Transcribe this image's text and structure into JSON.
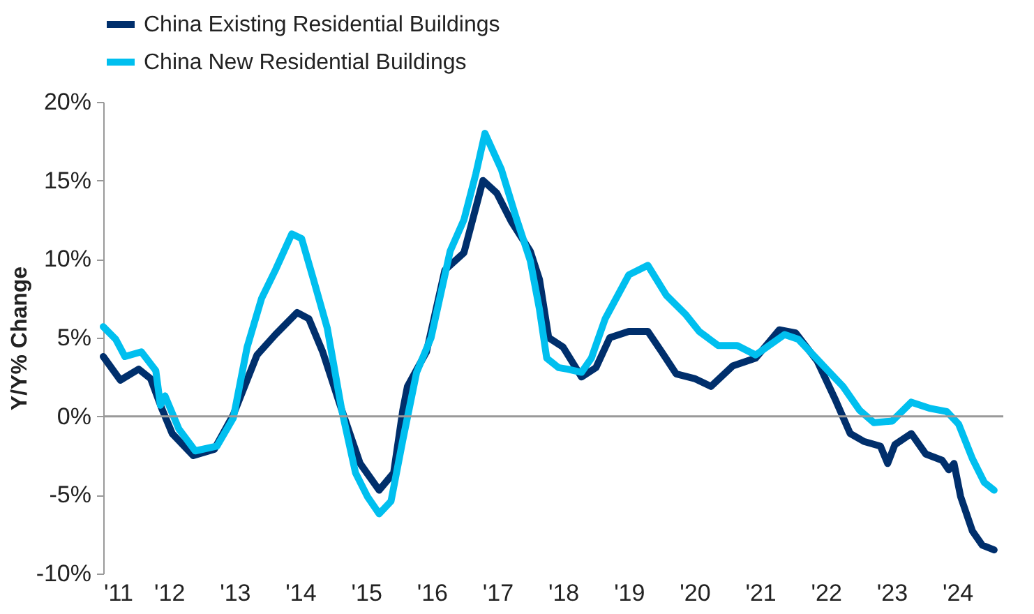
{
  "chart_data": {
    "type": "line",
    "ylabel": "Y/Y% Change",
    "xlim": [
      2011,
      2024.7
    ],
    "xticks": [
      {
        "value": 2011,
        "label": "'11"
      },
      {
        "value": 2012,
        "label": "'12"
      },
      {
        "value": 2013,
        "label": "'13"
      },
      {
        "value": 2014,
        "label": "'14"
      },
      {
        "value": 2015,
        "label": "'15"
      },
      {
        "value": 2016,
        "label": "'16"
      },
      {
        "value": 2017,
        "label": "'17"
      },
      {
        "value": 2018,
        "label": "'18"
      },
      {
        "value": 2019,
        "label": "'19"
      },
      {
        "value": 2020,
        "label": "'20"
      },
      {
        "value": 2021,
        "label": "'21"
      },
      {
        "value": 2022,
        "label": "'22"
      },
      {
        "value": 2023,
        "label": "'23"
      },
      {
        "value": 2024,
        "label": "'24"
      }
    ],
    "ylim": [
      -10,
      20
    ],
    "yticks": [
      {
        "value": -10,
        "label": "-10%"
      },
      {
        "value": -5,
        "label": "-5%"
      },
      {
        "value": 0,
        "label": "0%"
      },
      {
        "value": 5,
        "label": "5%"
      },
      {
        "value": 10,
        "label": "10%"
      },
      {
        "value": 15,
        "label": "15%"
      },
      {
        "value": 20,
        "label": "20%"
      }
    ],
    "grid": false,
    "legend": "top",
    "marker": "none",
    "line_style": "solid",
    "ref_lines": [
      {
        "axis": "y",
        "value": 0,
        "color": "#999999"
      }
    ],
    "series": [
      {
        "name": "China Existing Residential Buildings",
        "color": "#002f6c",
        "x": [
          2011.0,
          2011.26,
          2011.54,
          2011.72,
          2011.9,
          2012.05,
          2012.37,
          2012.69,
          2012.98,
          2013.34,
          2013.62,
          2013.95,
          2014.13,
          2014.34,
          2014.63,
          2014.91,
          2015.2,
          2015.42,
          2015.56,
          2015.63,
          2015.92,
          2016.2,
          2016.49,
          2016.78,
          2016.99,
          2017.21,
          2017.5,
          2017.64,
          2017.78,
          2018.0,
          2018.28,
          2018.5,
          2018.71,
          2019.0,
          2019.29,
          2019.5,
          2019.72,
          2020.0,
          2020.25,
          2020.58,
          2020.93,
          2021.29,
          2021.54,
          2021.87,
          2022.15,
          2022.37,
          2022.58,
          2022.83,
          2022.94,
          2023.05,
          2023.3,
          2023.52,
          2023.77,
          2023.87,
          2023.95,
          2024.05,
          2024.23,
          2024.38,
          2024.56
        ],
        "values": [
          3.8,
          2.3,
          3.0,
          2.4,
          0.4,
          -1.1,
          -2.5,
          -2.1,
          0.1,
          3.9,
          5.2,
          6.6,
          6.2,
          4.1,
          0.4,
          -3.0,
          -4.7,
          -3.6,
          0.4,
          1.9,
          4.1,
          9.3,
          10.4,
          15.0,
          14.2,
          12.4,
          10.5,
          8.7,
          5.0,
          4.4,
          2.5,
          3.1,
          5.0,
          5.4,
          5.4,
          4.1,
          2.7,
          2.4,
          1.9,
          3.2,
          3.7,
          5.5,
          5.3,
          3.5,
          1.0,
          -1.1,
          -1.6,
          -1.9,
          -3.0,
          -1.8,
          -1.1,
          -2.4,
          -2.8,
          -3.4,
          -3.0,
          -5.1,
          -7.3,
          -8.2,
          -8.5
        ]
      },
      {
        "name": "China New Residential Buildings",
        "color": "#00bfef",
        "x": [
          2011.0,
          2011.19,
          2011.33,
          2011.58,
          2011.8,
          2011.87,
          2011.94,
          2012.15,
          2012.4,
          2012.73,
          2012.98,
          2013.19,
          2013.41,
          2013.62,
          2013.87,
          2014.02,
          2014.2,
          2014.41,
          2014.63,
          2014.84,
          2015.02,
          2015.2,
          2015.38,
          2015.56,
          2015.77,
          2015.99,
          2016.28,
          2016.49,
          2016.67,
          2016.81,
          2017.06,
          2017.28,
          2017.5,
          2017.64,
          2017.75,
          2017.93,
          2018.07,
          2018.28,
          2018.43,
          2018.64,
          2019.0,
          2019.29,
          2019.57,
          2019.86,
          2020.07,
          2020.36,
          2020.65,
          2020.93,
          2021.37,
          2021.58,
          2022.01,
          2022.26,
          2022.51,
          2022.73,
          2023.01,
          2023.3,
          2023.59,
          2023.84,
          2024.02,
          2024.23,
          2024.41,
          2024.56
        ],
        "values": [
          5.7,
          4.9,
          3.8,
          4.1,
          2.9,
          0.7,
          1.3,
          -0.8,
          -2.2,
          -1.9,
          -0.1,
          4.4,
          7.5,
          9.3,
          11.6,
          11.3,
          8.7,
          5.6,
          0.4,
          -3.6,
          -5.1,
          -6.2,
          -5.4,
          -1.5,
          2.8,
          5.0,
          10.5,
          12.5,
          15.4,
          18.0,
          15.7,
          12.7,
          9.9,
          6.8,
          3.7,
          3.1,
          3.0,
          2.8,
          3.7,
          6.2,
          9.0,
          9.6,
          7.7,
          6.5,
          5.4,
          4.5,
          4.5,
          3.9,
          5.2,
          4.9,
          3.0,
          1.9,
          0.4,
          -0.4,
          -0.3,
          0.9,
          0.5,
          0.3,
          -0.5,
          -2.7,
          -4.2,
          -4.7
        ]
      }
    ]
  }
}
